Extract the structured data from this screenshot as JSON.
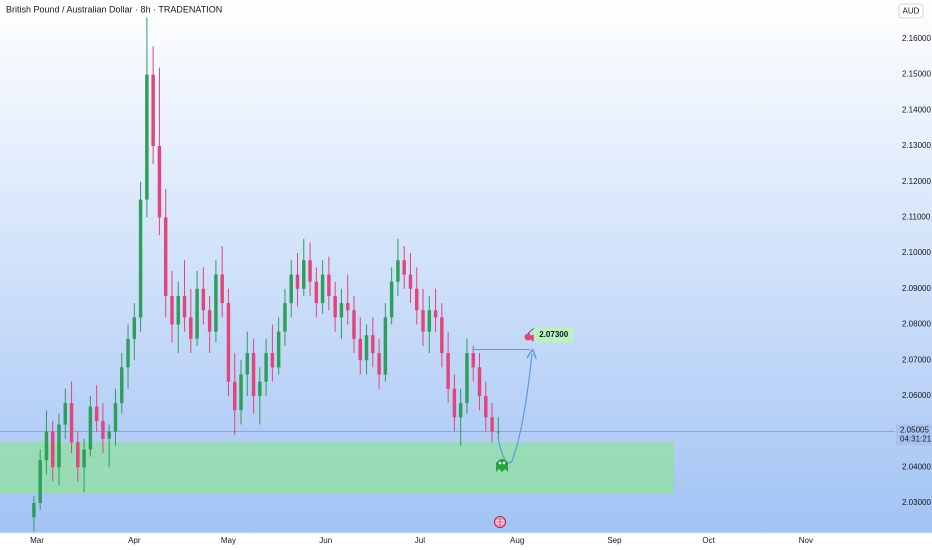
{
  "chart_data": {
    "type": "candlestick",
    "title": "British Pound / Australian Dollar · 8h · TRADENATION",
    "currency": "AUD",
    "up_color": "#2e9e5b",
    "down_color": "#e0457b",
    "xlim": [
      -11.8,
      273.4
    ],
    "ylim": [
      2.0216,
      2.1709
    ],
    "xticks": [
      {
        "value": 0,
        "label": "Mar"
      },
      {
        "value": 31,
        "label": "Apr"
      },
      {
        "value": 61,
        "label": "May"
      },
      {
        "value": 92,
        "label": "Jun"
      },
      {
        "value": 122,
        "label": "Jul"
      },
      {
        "value": 153,
        "label": "Aug"
      },
      {
        "value": 184,
        "label": "Sep"
      },
      {
        "value": 214,
        "label": "Oct"
      },
      {
        "value": 245,
        "label": "Nov"
      }
    ],
    "yticks": [
      {
        "value": 2.03,
        "label": "2.03000"
      },
      {
        "value": 2.04,
        "label": "2.04000"
      },
      {
        "value": 2.05,
        "label": "2.05000"
      },
      {
        "value": 2.06,
        "label": "2.06000"
      },
      {
        "value": 2.07,
        "label": "2.07000"
      },
      {
        "value": 2.08,
        "label": "2.08000"
      },
      {
        "value": 2.09,
        "label": "2.09000"
      },
      {
        "value": 2.1,
        "label": "2.10000"
      },
      {
        "value": 2.11,
        "label": "2.11000"
      },
      {
        "value": 2.12,
        "label": "2.12000"
      },
      {
        "value": 2.13,
        "label": "2.13000"
      },
      {
        "value": 2.14,
        "label": "2.14000"
      },
      {
        "value": 2.15,
        "label": "2.15000"
      },
      {
        "value": 2.16,
        "label": "2.16000"
      }
    ],
    "candles": {
      "x": [
        -1,
        1,
        3,
        5,
        7,
        9,
        11,
        13,
        15,
        17,
        19,
        21,
        23,
        25,
        27,
        29,
        31,
        33,
        35,
        37,
        39,
        41,
        43,
        45,
        47,
        49,
        51,
        53,
        55,
        57,
        59,
        61,
        63,
        65,
        67,
        69,
        71,
        73,
        75,
        77,
        79,
        81,
        83,
        85,
        87,
        89,
        91,
        93,
        95,
        97,
        99,
        101,
        103,
        105,
        107,
        109,
        111,
        113,
        115,
        117,
        119,
        121,
        123,
        125,
        127,
        129,
        131,
        133,
        135,
        137,
        139,
        141,
        143,
        145,
        147
      ],
      "open": [
        2.026,
        2.03,
        2.042,
        2.05,
        2.04,
        2.052,
        2.058,
        2.047,
        2.04,
        2.045,
        2.057,
        2.053,
        2.048,
        2.05,
        2.058,
        2.068,
        2.076,
        2.082,
        2.115,
        2.15,
        2.13,
        2.11,
        2.088,
        2.08,
        2.088,
        2.082,
        2.076,
        2.09,
        2.084,
        2.078,
        2.094,
        2.086,
        2.064,
        2.056,
        2.066,
        2.072,
        2.06,
        2.064,
        2.072,
        2.068,
        2.078,
        2.086,
        2.094,
        2.09,
        2.098,
        2.092,
        2.086,
        2.094,
        2.088,
        2.082,
        2.086,
        2.084,
        2.076,
        2.07,
        2.077,
        2.072,
        2.066,
        2.082,
        2.092,
        2.098,
        2.094,
        2.09,
        2.084,
        2.078,
        2.084,
        2.082,
        2.072,
        2.062,
        2.054,
        2.058,
        2.072,
        2.068,
        2.06,
        2.054,
        2.05
      ],
      "high": [
        2.032,
        2.045,
        2.056,
        2.053,
        2.055,
        2.062,
        2.064,
        2.05,
        2.048,
        2.06,
        2.063,
        2.058,
        2.052,
        2.062,
        2.072,
        2.08,
        2.086,
        2.12,
        2.166,
        2.158,
        2.152,
        2.118,
        2.095,
        2.092,
        2.098,
        2.09,
        2.095,
        2.096,
        2.088,
        2.098,
        2.102,
        2.09,
        2.072,
        2.07,
        2.078,
        2.076,
        2.068,
        2.076,
        2.08,
        2.082,
        2.09,
        2.098,
        2.1,
        2.104,
        2.103,
        2.096,
        2.098,
        2.099,
        2.092,
        2.09,
        2.094,
        2.088,
        2.082,
        2.08,
        2.082,
        2.076,
        2.086,
        2.096,
        2.104,
        2.102,
        2.1,
        2.096,
        2.09,
        2.088,
        2.09,
        2.086,
        2.078,
        2.066,
        2.062,
        2.076,
        2.074,
        2.072,
        2.064,
        2.058,
        2.054
      ],
      "low": [
        2.022,
        2.028,
        2.038,
        2.036,
        2.035,
        2.048,
        2.044,
        2.036,
        2.033,
        2.043,
        2.05,
        2.044,
        2.04,
        2.046,
        2.055,
        2.062,
        2.07,
        2.078,
        2.11,
        2.125,
        2.105,
        2.082,
        2.075,
        2.072,
        2.078,
        2.072,
        2.074,
        2.08,
        2.072,
        2.075,
        2.082,
        2.06,
        2.049,
        2.052,
        2.06,
        2.055,
        2.052,
        2.06,
        2.064,
        2.066,
        2.074,
        2.082,
        2.085,
        2.088,
        2.088,
        2.082,
        2.083,
        2.084,
        2.078,
        2.076,
        2.08,
        2.072,
        2.066,
        2.066,
        2.068,
        2.062,
        2.064,
        2.08,
        2.088,
        2.09,
        2.086,
        2.08,
        2.074,
        2.072,
        2.078,
        2.068,
        2.058,
        2.05,
        2.046,
        2.055,
        2.064,
        2.056,
        2.05,
        2.047,
        2.048
      ],
      "close": [
        2.03,
        2.042,
        2.05,
        2.04,
        2.052,
        2.058,
        2.047,
        2.04,
        2.045,
        2.057,
        2.053,
        2.048,
        2.05,
        2.058,
        2.068,
        2.076,
        2.082,
        2.115,
        2.15,
        2.13,
        2.11,
        2.088,
        2.08,
        2.088,
        2.082,
        2.076,
        2.09,
        2.084,
        2.078,
        2.094,
        2.086,
        2.064,
        2.056,
        2.066,
        2.072,
        2.06,
        2.064,
        2.072,
        2.068,
        2.078,
        2.086,
        2.094,
        2.09,
        2.098,
        2.092,
        2.086,
        2.094,
        2.088,
        2.082,
        2.086,
        2.084,
        2.076,
        2.07,
        2.077,
        2.072,
        2.066,
        2.082,
        2.092,
        2.098,
        2.094,
        2.09,
        2.084,
        2.078,
        2.084,
        2.082,
        2.072,
        2.062,
        2.054,
        2.058,
        2.072,
        2.068,
        2.06,
        2.054,
        2.05,
        2.05005
      ]
    },
    "last_price": 2.05005,
    "countdown": "04:31:21",
    "zone": {
      "low": 2.0328,
      "high": 2.0471,
      "x_end": 203
    },
    "target": {
      "value": 2.073,
      "label": "2.07300",
      "x": [
        139,
        157
      ]
    }
  }
}
